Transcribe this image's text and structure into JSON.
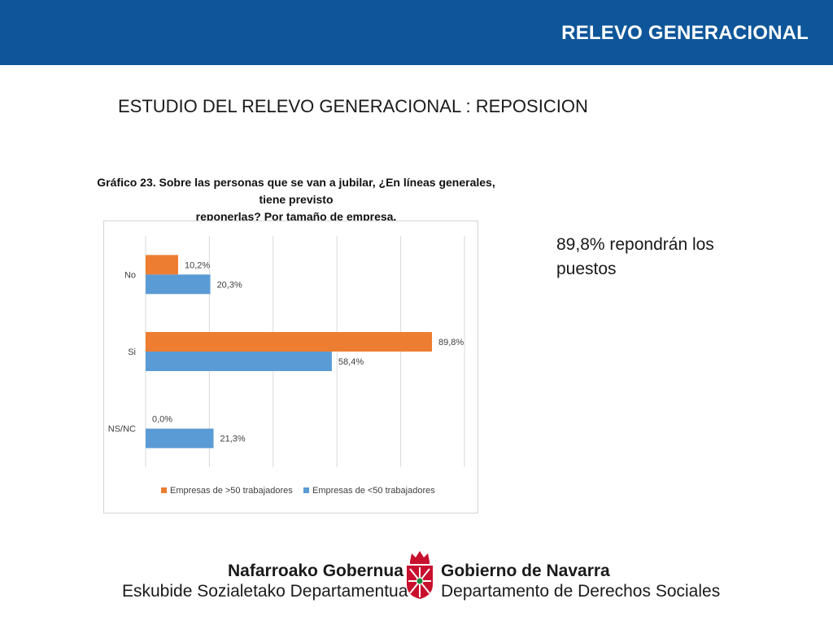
{
  "header": {
    "title": "RELEVO GENERACIONAL"
  },
  "slide_title": "ESTUDIO DEL RELEVO GENERACIONAL : REPOSICION",
  "chart_heading": {
    "line1": "Gráfico 23.  Sobre las personas que se van a jubilar, ¿En líneas generales, tiene previsto",
    "line2": "reponerlas? Por tamaño de empresa."
  },
  "callout": "89,8% repondrán los puestos",
  "chart_data": {
    "type": "bar",
    "orientation": "horizontal",
    "categories": [
      "No",
      "Si",
      "NS/NC"
    ],
    "series": [
      {
        "name": "Empresas de >50 trabajadores",
        "values": [
          10.2,
          89.8,
          0.0
        ],
        "labels": [
          "10,2%",
          "89,8%",
          "0,0%"
        ],
        "color": "#ed7d31"
      },
      {
        "name": "Empresas de <50 trabajadores",
        "values": [
          20.3,
          58.4,
          21.3
        ],
        "labels": [
          "20,3%",
          "58,4%",
          "21,3%"
        ],
        "color": "#5b9bd5"
      }
    ],
    "xlim": [
      0,
      100
    ],
    "grid": true,
    "legend": "bottom"
  },
  "footer": {
    "left_top": "Nafarroako Gobernua",
    "left_bottom": "Eskubide Sozialetako Departamentua",
    "right_top": "Gobierno de Navarra",
    "right_bottom": "Departamento de Derechos Sociales",
    "crest_icon": "navarre-crest-icon"
  }
}
